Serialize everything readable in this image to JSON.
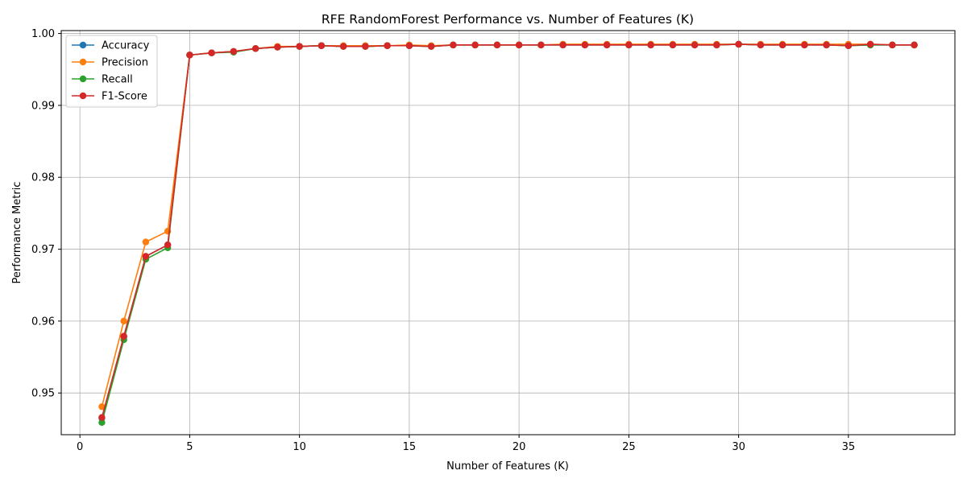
{
  "chart_data": {
    "type": "line",
    "title": "RFE RandomForest Performance vs. Number of Features (K)",
    "xlabel": "Number of Features (K)",
    "ylabel": "Performance Metric",
    "xlim": [
      -0.85,
      39.85
    ],
    "ylim": [
      0.9442,
      1.0004
    ],
    "xticks": [
      0,
      5,
      10,
      15,
      20,
      25,
      30,
      35
    ],
    "yticks": [
      0.95,
      0.96,
      0.97,
      0.98,
      0.99,
      1.0
    ],
    "ytick_labels": [
      "0.95",
      "0.96",
      "0.97",
      "0.98",
      "0.99",
      "1.00"
    ],
    "grid": true,
    "legend_position": "top-left",
    "x": [
      1,
      2,
      3,
      4,
      5,
      6,
      7,
      8,
      9,
      10,
      11,
      12,
      13,
      14,
      15,
      16,
      17,
      18,
      19,
      20,
      21,
      22,
      23,
      24,
      25,
      26,
      27,
      28,
      29,
      30,
      31,
      32,
      33,
      34,
      35,
      36,
      37,
      38
    ],
    "series": [
      {
        "name": "Accuracy",
        "color": "#1f77b4",
        "values": [
          0.9465,
          0.9578,
          0.969,
          0.9706,
          0.997,
          0.9973,
          0.9975,
          0.9979,
          0.9981,
          0.9982,
          0.9983,
          0.9982,
          0.9982,
          0.9983,
          0.9983,
          0.9982,
          0.9984,
          0.9984,
          0.9984,
          0.9984,
          0.9984,
          0.9984,
          0.9984,
          0.9984,
          0.9984,
          0.9984,
          0.9984,
          0.9984,
          0.9984,
          0.9985,
          0.9984,
          0.9984,
          0.9984,
          0.9984,
          0.9983,
          0.9984,
          0.9984,
          0.9984
        ]
      },
      {
        "name": "Precision",
        "color": "#ff7f0e",
        "values": [
          0.9481,
          0.96,
          0.971,
          0.9725,
          0.997,
          0.9973,
          0.9975,
          0.9979,
          0.9982,
          0.9982,
          0.9983,
          0.9983,
          0.9983,
          0.9983,
          0.9984,
          0.9983,
          0.9984,
          0.9984,
          0.9984,
          0.9984,
          0.9984,
          0.9985,
          0.9985,
          0.9985,
          0.9985,
          0.9985,
          0.9985,
          0.9985,
          0.9985,
          0.9985,
          0.9985,
          0.9985,
          0.9985,
          0.9985,
          0.9985,
          0.9985,
          0.9984,
          0.9984
        ]
      },
      {
        "name": "Recall",
        "color": "#2ca02c",
        "values": [
          0.9459,
          0.9574,
          0.9686,
          0.9702,
          0.997,
          0.9973,
          0.9974,
          0.9979,
          0.9981,
          0.9982,
          0.9983,
          0.9982,
          0.9982,
          0.9983,
          0.9983,
          0.9982,
          0.9984,
          0.9984,
          0.9984,
          0.9984,
          0.9984,
          0.9984,
          0.9984,
          0.9984,
          0.9984,
          0.9984,
          0.9984,
          0.9984,
          0.9984,
          0.9985,
          0.9984,
          0.9984,
          0.9984,
          0.9984,
          0.9983,
          0.9984,
          0.9984,
          0.9984
        ]
      },
      {
        "name": "F1-Score",
        "color": "#d62728",
        "values": [
          0.9466,
          0.9579,
          0.969,
          0.9706,
          0.997,
          0.9973,
          0.9975,
          0.9979,
          0.9981,
          0.9982,
          0.9983,
          0.9982,
          0.9982,
          0.9983,
          0.9983,
          0.9982,
          0.9984,
          0.9984,
          0.9984,
          0.9984,
          0.9984,
          0.9984,
          0.9984,
          0.9984,
          0.9984,
          0.9984,
          0.9984,
          0.9984,
          0.9984,
          0.9985,
          0.9984,
          0.9984,
          0.9984,
          0.9984,
          0.9983,
          0.9985,
          0.9984,
          0.9984
        ]
      }
    ]
  }
}
